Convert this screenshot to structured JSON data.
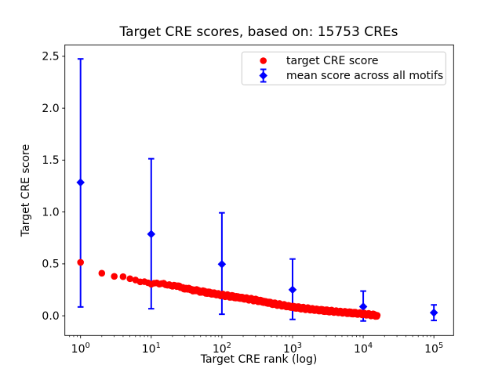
{
  "chart_data": {
    "type": "scatter",
    "title": "Target CRE scores, based on: 15753 CREs",
    "xlabel": "Target CRE rank (log)",
    "ylabel": "Target CRE score",
    "x_scale": "log",
    "y_scale": "linear",
    "xlim": [
      0.6,
      190000
    ],
    "ylim": [
      -0.19,
      2.61
    ],
    "grid": false,
    "background": "#ffffff",
    "axis_color": "#000000",
    "x_ticks": [
      {
        "value": 1,
        "label": "10^0"
      },
      {
        "value": 10,
        "label": "10^1"
      },
      {
        "value": 100,
        "label": "10^2"
      },
      {
        "value": 1000,
        "label": "10^3"
      },
      {
        "value": 10000,
        "label": "10^4"
      },
      {
        "value": 100000,
        "label": "10^5"
      }
    ],
    "y_ticks": [
      {
        "value": 0.0,
        "label": "0.0"
      },
      {
        "value": 0.5,
        "label": "0.5"
      },
      {
        "value": 1.0,
        "label": "1.0"
      },
      {
        "value": 1.5,
        "label": "1.5"
      },
      {
        "value": 2.0,
        "label": "2.0"
      },
      {
        "value": 2.5,
        "label": "2.5"
      }
    ],
    "legend": {
      "position": "upper right",
      "border_color": "#cccccc",
      "background": "#ffffff"
    },
    "series": [
      {
        "name": "target CRE score",
        "type": "scatter",
        "color": "#ff0000",
        "marker": "circle",
        "n_points": 15753,
        "rank_score_anchors": [
          [
            1,
            0.515
          ],
          [
            2,
            0.41
          ],
          [
            3,
            0.38
          ],
          [
            4,
            0.377
          ],
          [
            5,
            0.357
          ],
          [
            7,
            0.335
          ],
          [
            10,
            0.315
          ],
          [
            20,
            0.295
          ],
          [
            32,
            0.26
          ],
          [
            50,
            0.235
          ],
          [
            100,
            0.2
          ],
          [
            200,
            0.17
          ],
          [
            316,
            0.148
          ],
          [
            500,
            0.12
          ],
          [
            1000,
            0.085
          ],
          [
            2000,
            0.06
          ],
          [
            3162,
            0.047
          ],
          [
            5000,
            0.035
          ],
          [
            10000,
            0.018
          ],
          [
            15753,
            0.003
          ]
        ]
      },
      {
        "name": "mean score across all motifs",
        "type": "errorbar",
        "color": "#0000ff",
        "marker": "diamond",
        "points": [
          {
            "x": 1,
            "y": 1.285,
            "ylow": 0.085,
            "yhigh": 2.475
          },
          {
            "x": 10,
            "y": 0.787,
            "ylow": 0.068,
            "yhigh": 1.513
          },
          {
            "x": 100,
            "y": 0.497,
            "ylow": 0.015,
            "yhigh": 0.992
          },
          {
            "x": 1000,
            "y": 0.251,
            "ylow": -0.035,
            "yhigh": 0.547
          },
          {
            "x": 10000,
            "y": 0.088,
            "ylow": -0.05,
            "yhigh": 0.238
          },
          {
            "x": 100000,
            "y": 0.03,
            "ylow": -0.045,
            "yhigh": 0.105
          }
        ]
      }
    ]
  }
}
